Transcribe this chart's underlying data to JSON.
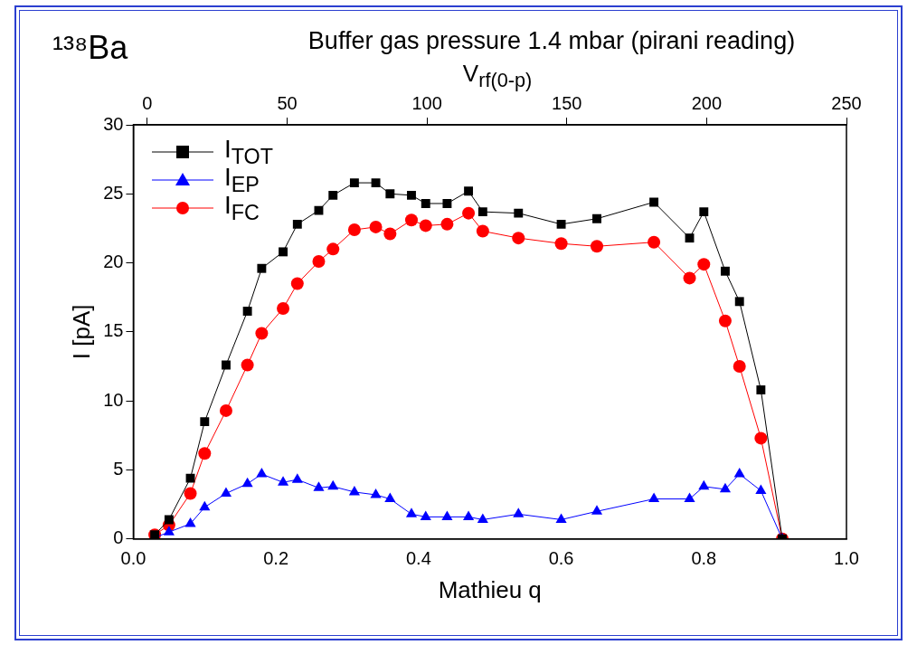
{
  "chart_data": {
    "type": "line",
    "title": "Buffer gas pressure 1.4 mbar (pirani reading)",
    "annotations": [
      "¹³⁸Ba"
    ],
    "xlabel": "Mathieu q",
    "ylabel": "I [pA]",
    "x2label": "V$_{rf(0-p)}$",
    "x": [
      0.03,
      0.05,
      0.08,
      0.1,
      0.13,
      0.16,
      0.18,
      0.21,
      0.23,
      0.26,
      0.28,
      0.31,
      0.34,
      0.36,
      0.39,
      0.41,
      0.44,
      0.47,
      0.49,
      0.54,
      0.6,
      0.65,
      0.73,
      0.78,
      0.8,
      0.83,
      0.85,
      0.88,
      0.91
    ],
    "series": [
      {
        "name": "I$_{TOT}$",
        "color": "#000000",
        "marker": "square",
        "values": [
          0.3,
          1.4,
          4.4,
          8.5,
          12.6,
          16.5,
          19.6,
          20.8,
          22.8,
          23.8,
          24.9,
          25.8,
          25.8,
          25.0,
          24.9,
          24.3,
          24.3,
          25.2,
          23.7,
          23.6,
          22.8,
          23.2,
          24.4,
          21.8,
          23.7,
          19.4,
          17.2,
          10.8,
          0
        ]
      },
      {
        "name": "I$_{EP}$",
        "color": "#0000ff",
        "marker": "triangle",
        "values": [
          0.1,
          0.5,
          1.1,
          2.3,
          3.3,
          4.0,
          4.7,
          4.1,
          4.3,
          3.7,
          3.8,
          3.4,
          3.2,
          2.9,
          1.8,
          1.6,
          1.6,
          1.6,
          1.4,
          1.8,
          1.4,
          2.0,
          2.9,
          2.9,
          3.8,
          3.6,
          4.7,
          3.5,
          0
        ]
      },
      {
        "name": "I$_{FC}$",
        "color": "#ff0000",
        "marker": "circle",
        "values": [
          0.3,
          1.0,
          3.3,
          6.2,
          9.3,
          12.6,
          14.9,
          16.7,
          18.5,
          20.1,
          21.0,
          22.4,
          22.6,
          22.1,
          23.1,
          22.7,
          22.8,
          23.6,
          22.3,
          21.8,
          21.4,
          21.2,
          21.5,
          18.9,
          19.9,
          15.8,
          12.5,
          7.3,
          0
        ]
      }
    ],
    "xlim": [
      0,
      1
    ],
    "xticks": [
      {
        "value": 0,
        "label": "0.0"
      },
      {
        "value": 0.2,
        "label": "0.2"
      },
      {
        "value": 0.4,
        "label": "0.4"
      },
      {
        "value": 0.6,
        "label": "0.6"
      },
      {
        "value": 0.8,
        "label": "0.8"
      },
      {
        "value": 1,
        "label": "1.0"
      }
    ],
    "x2lim": [
      -5,
      250
    ],
    "x2ticks": [
      0,
      50,
      100,
      150,
      200,
      250
    ],
    "ylim": [
      0,
      30
    ],
    "yticks": [
      0,
      5,
      10,
      15,
      20,
      25,
      30
    ],
    "grid": false,
    "legend": "top left",
    "line_style": "solid"
  }
}
